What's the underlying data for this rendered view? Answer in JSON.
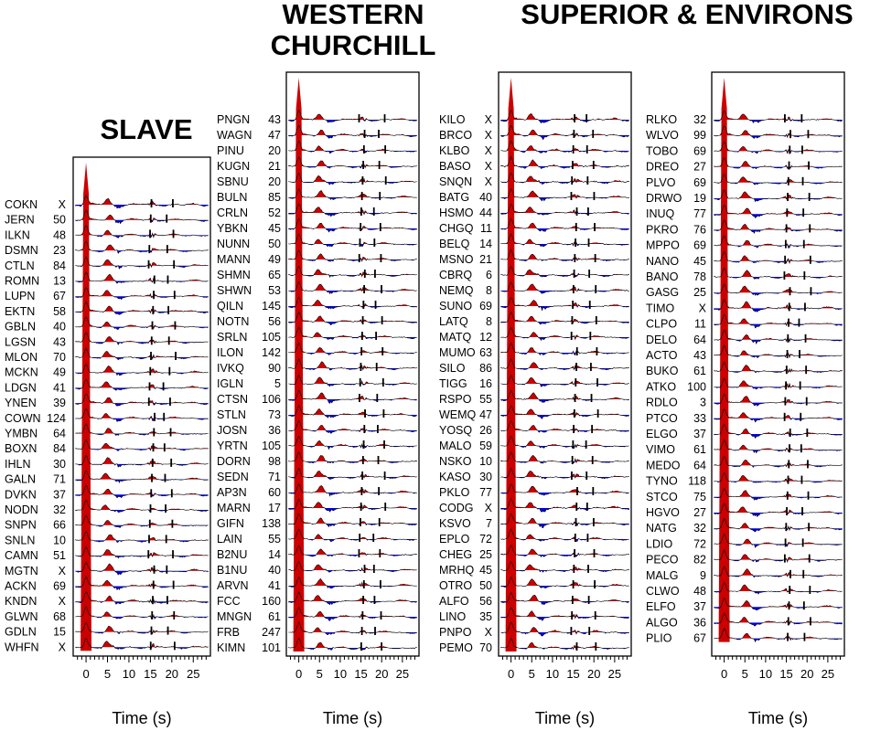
{
  "chart_data": [
    {
      "type": "seismic-trace-stack",
      "title": "SLAVE",
      "xlabel": "Time (s)",
      "xlim": [
        -3,
        29
      ],
      "xticks": [
        0,
        5,
        10,
        15,
        20,
        25
      ],
      "stations": [
        {
          "name": "COKN",
          "value": "X"
        },
        {
          "name": "JERN",
          "value": "50"
        },
        {
          "name": "ILKN",
          "value": "48"
        },
        {
          "name": "DSMN",
          "value": "23"
        },
        {
          "name": "CTLN",
          "value": "84"
        },
        {
          "name": "ROMN",
          "value": "13"
        },
        {
          "name": "LUPN",
          "value": "67"
        },
        {
          "name": "EKTN",
          "value": "58"
        },
        {
          "name": "GBLN",
          "value": "40"
        },
        {
          "name": "LGSN",
          "value": "43"
        },
        {
          "name": "MLON",
          "value": "70"
        },
        {
          "name": "MCKN",
          "value": "49"
        },
        {
          "name": "LDGN",
          "value": "41"
        },
        {
          "name": "YNEN",
          "value": "39"
        },
        {
          "name": "COWN",
          "value": "124"
        },
        {
          "name": "YMBN",
          "value": "64"
        },
        {
          "name": "BOXN",
          "value": "84"
        },
        {
          "name": "IHLN",
          "value": "30"
        },
        {
          "name": "GALN",
          "value": "71"
        },
        {
          "name": "DVKN",
          "value": "37"
        },
        {
          "name": "NODN",
          "value": "32"
        },
        {
          "name": "SNPN",
          "value": "66"
        },
        {
          "name": "SNLN",
          "value": "10"
        },
        {
          "name": "CAMN",
          "value": "51"
        },
        {
          "name": "MGTN",
          "value": "X"
        },
        {
          "name": "ACKN",
          "value": "69"
        },
        {
          "name": "KNDN",
          "value": "X"
        },
        {
          "name": "GLWN",
          "value": "68"
        },
        {
          "name": "GDLN",
          "value": "15"
        },
        {
          "name": "WHFN",
          "value": "X"
        }
      ]
    },
    {
      "type": "seismic-trace-stack",
      "title": "WESTERN CHURCHILL",
      "xlabel": "Time (s)",
      "xlim": [
        -3,
        29
      ],
      "xticks": [
        0,
        5,
        10,
        15,
        20,
        25
      ],
      "stations": [
        {
          "name": "PNGN",
          "value": "43"
        },
        {
          "name": "WAGN",
          "value": "47"
        },
        {
          "name": "PINU",
          "value": "20"
        },
        {
          "name": "KUGN",
          "value": "21"
        },
        {
          "name": "SBNU",
          "value": "20"
        },
        {
          "name": "BULN",
          "value": "85"
        },
        {
          "name": "CRLN",
          "value": "52"
        },
        {
          "name": "YBKN",
          "value": "45"
        },
        {
          "name": "NUNN",
          "value": "50"
        },
        {
          "name": "MANN",
          "value": "49"
        },
        {
          "name": "SHMN",
          "value": "65"
        },
        {
          "name": "SHWN",
          "value": "53"
        },
        {
          "name": "QILN",
          "value": "145"
        },
        {
          "name": "NOTN",
          "value": "56"
        },
        {
          "name": "SRLN",
          "value": "105"
        },
        {
          "name": "ILON",
          "value": "142"
        },
        {
          "name": "IVKQ",
          "value": "90"
        },
        {
          "name": "IGLN",
          "value": "5"
        },
        {
          "name": "CTSN",
          "value": "106"
        },
        {
          "name": "STLN",
          "value": "73"
        },
        {
          "name": "JOSN",
          "value": "36"
        },
        {
          "name": "YRTN",
          "value": "105"
        },
        {
          "name": "DORN",
          "value": "98"
        },
        {
          "name": "SEDN",
          "value": "71"
        },
        {
          "name": "AP3N",
          "value": "60"
        },
        {
          "name": "MARN",
          "value": "17"
        },
        {
          "name": "GIFN",
          "value": "138"
        },
        {
          "name": "LAIN",
          "value": "55"
        },
        {
          "name": "B2NU",
          "value": "14"
        },
        {
          "name": "B1NU",
          "value": "40"
        },
        {
          "name": "ARVN",
          "value": "41"
        },
        {
          "name": "FCC",
          "value": "160"
        },
        {
          "name": "MNGN",
          "value": "61"
        },
        {
          "name": "FRB",
          "value": "247"
        },
        {
          "name": "KIMN",
          "value": "101"
        }
      ]
    },
    {
      "type": "seismic-trace-stack",
      "title": "SUPERIOR & ENVIRONS",
      "xlabel": "Time (s)",
      "xlim": [
        -3,
        29
      ],
      "xticks": [
        0,
        5,
        10,
        15,
        20,
        25
      ],
      "stations": [
        {
          "name": "KILO",
          "value": "X"
        },
        {
          "name": "BRCO",
          "value": "X"
        },
        {
          "name": "KLBO",
          "value": "X"
        },
        {
          "name": "BASO",
          "value": "X"
        },
        {
          "name": "SNQN",
          "value": "X"
        },
        {
          "name": "BATG",
          "value": "40"
        },
        {
          "name": "HSMO",
          "value": "44"
        },
        {
          "name": "CHGQ",
          "value": "11"
        },
        {
          "name": "BELQ",
          "value": "14"
        },
        {
          "name": "MSNO",
          "value": "21"
        },
        {
          "name": "CBRQ",
          "value": "6"
        },
        {
          "name": "NEMQ",
          "value": "8"
        },
        {
          "name": "SUNO",
          "value": "69"
        },
        {
          "name": "LATQ",
          "value": "8"
        },
        {
          "name": "MATQ",
          "value": "12"
        },
        {
          "name": "MUMO",
          "value": "63"
        },
        {
          "name": "SILO",
          "value": "86"
        },
        {
          "name": "TIGG",
          "value": "16"
        },
        {
          "name": "RSPO",
          "value": "55"
        },
        {
          "name": "WEMQ",
          "value": "47"
        },
        {
          "name": "YOSQ",
          "value": "26"
        },
        {
          "name": "MALO",
          "value": "59"
        },
        {
          "name": "NSKO",
          "value": "10"
        },
        {
          "name": "KASO",
          "value": "30"
        },
        {
          "name": "PKLO",
          "value": "77"
        },
        {
          "name": "CODG",
          "value": "X"
        },
        {
          "name": "KSVO",
          "value": "7"
        },
        {
          "name": "EPLO",
          "value": "72"
        },
        {
          "name": "CHEG",
          "value": "25"
        },
        {
          "name": "MRHQ",
          "value": "45"
        },
        {
          "name": "OTRO",
          "value": "50"
        },
        {
          "name": "ALFO",
          "value": "56"
        },
        {
          "name": "LINO",
          "value": "35"
        },
        {
          "name": "PNPO",
          "value": "X"
        },
        {
          "name": "PEMO",
          "value": "70"
        }
      ]
    },
    {
      "type": "seismic-trace-stack",
      "title": "",
      "xlabel": "Time (s)",
      "xlim": [
        -3,
        29
      ],
      "xticks": [
        0,
        5,
        10,
        15,
        20,
        25
      ],
      "stations": [
        {
          "name": "RLKO",
          "value": "32"
        },
        {
          "name": "WLVO",
          "value": "99"
        },
        {
          "name": "TOBO",
          "value": "69"
        },
        {
          "name": "DREO",
          "value": "27"
        },
        {
          "name": "PLVO",
          "value": "69"
        },
        {
          "name": "DRWO",
          "value": "19"
        },
        {
          "name": "INUQ",
          "value": "77"
        },
        {
          "name": "PKRO",
          "value": "76"
        },
        {
          "name": "MPPO",
          "value": "69"
        },
        {
          "name": "NANO",
          "value": "45"
        },
        {
          "name": "BANO",
          "value": "78"
        },
        {
          "name": "GASG",
          "value": "25"
        },
        {
          "name": "TIMO",
          "value": "X"
        },
        {
          "name": "CLPO",
          "value": "11"
        },
        {
          "name": "DELO",
          "value": "64"
        },
        {
          "name": "ACTO",
          "value": "43"
        },
        {
          "name": "BUKO",
          "value": "61"
        },
        {
          "name": "ATKO",
          "value": "100"
        },
        {
          "name": "RDLO",
          "value": "3"
        },
        {
          "name": "PTCO",
          "value": "33"
        },
        {
          "name": "ELGO",
          "value": "37"
        },
        {
          "name": "VIMO",
          "value": "61"
        },
        {
          "name": "MEDO",
          "value": "64"
        },
        {
          "name": "TYNO",
          "value": "118"
        },
        {
          "name": "STCO",
          "value": "75"
        },
        {
          "name": "HGVO",
          "value": "27"
        },
        {
          "name": "NATG",
          "value": "32"
        },
        {
          "name": "LDIO",
          "value": "72"
        },
        {
          "name": "PECO",
          "value": "82"
        },
        {
          "name": "MALG",
          "value": "9"
        },
        {
          "name": "CLWO",
          "value": "48"
        },
        {
          "name": "ELFO",
          "value": "37"
        },
        {
          "name": "ALGO",
          "value": "36"
        },
        {
          "name": "PLIO",
          "value": "67"
        }
      ]
    }
  ],
  "colors": {
    "positive": "#cc0000",
    "negative": "#0000e6",
    "trace": "#000000"
  }
}
